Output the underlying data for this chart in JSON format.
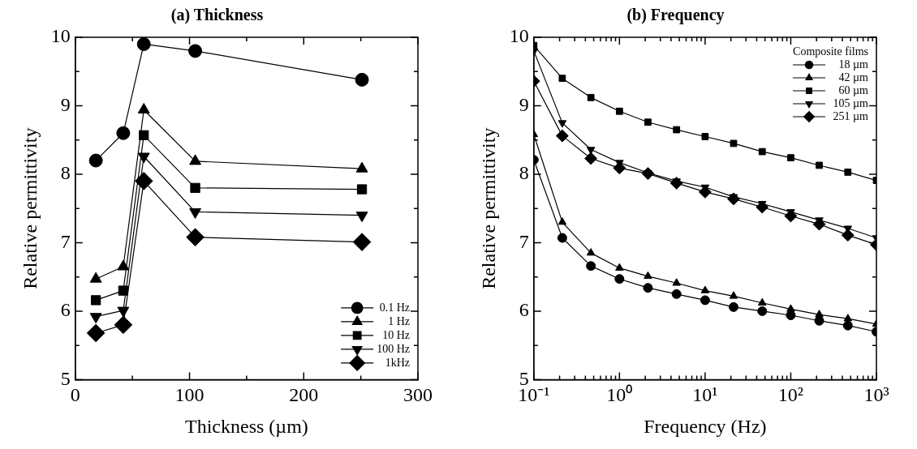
{
  "chart_data": [
    {
      "type": "line",
      "title": "(a) Thickness",
      "xlabel": "Thickness (µm)",
      "ylabel": "Relative permittivity",
      "x": [
        18,
        42,
        60,
        105,
        251
      ],
      "series": [
        {
          "name": "0.1 Hz",
          "color": "#000000",
          "marker": "circle",
          "values": [
            8.2,
            8.6,
            9.9,
            9.8,
            9.38
          ]
        },
        {
          "name": "1 Hz",
          "color": "#000000",
          "marker": "triangle",
          "values": [
            6.47,
            6.65,
            8.94,
            8.19,
            8.08
          ]
        },
        {
          "name": "10 Hz",
          "color": "#000000",
          "marker": "square",
          "values": [
            6.16,
            6.3,
            8.57,
            7.8,
            7.78
          ]
        },
        {
          "name": "100 Hz",
          "color": "#000000",
          "marker": "triangle-down",
          "values": [
            5.92,
            6.01,
            8.26,
            7.45,
            7.4
          ]
        },
        {
          "name": "1kHz",
          "color": "#000000",
          "marker": "diamond",
          "values": [
            5.68,
            5.8,
            7.9,
            7.08,
            7.01
          ]
        }
      ],
      "xlim": [
        0,
        300
      ],
      "xticks": [
        0,
        {
          "value": 50,
          "label": null
        },
        100,
        {
          "value": 150,
          "label": null
        },
        200,
        {
          "value": 250,
          "label": null
        },
        300
      ],
      "ylim": [
        5,
        10
      ],
      "yticks": [
        5,
        {
          "value": 5.5,
          "label": null
        },
        6,
        {
          "value": 6.5,
          "label": null
        },
        7,
        {
          "value": 7.5,
          "label": null
        },
        8,
        {
          "value": 8.5,
          "label": null
        },
        9,
        {
          "value": 9.5,
          "label": null
        },
        10
      ],
      "legend": "bottom right",
      "line_style": "solid"
    },
    {
      "type": "line",
      "title": "(b) Frequency",
      "xlabel": "Frequency (Hz)",
      "ylabel": "Relative permittivity",
      "legend_title": "Composite films",
      "x": [
        0.1,
        0.215,
        0.464,
        1,
        2.15,
        4.64,
        10,
        21.5,
        46.4,
        100,
        215,
        464,
        1000
      ],
      "series": [
        {
          "name": "18 µm",
          "color": "#000000",
          "marker": "circle",
          "values": [
            8.21,
            7.07,
            6.66,
            6.47,
            6.34,
            6.25,
            6.16,
            6.06,
            6.0,
            5.94,
            5.86,
            5.79,
            5.7
          ]
        },
        {
          "name": "42 µm",
          "color": "#000000",
          "marker": "triangle",
          "values": [
            8.58,
            7.3,
            6.85,
            6.63,
            6.51,
            6.41,
            6.3,
            6.22,
            6.12,
            6.03,
            5.95,
            5.89,
            5.81
          ]
        },
        {
          "name": "60 µm",
          "color": "#000000",
          "marker": "square",
          "values": [
            9.88,
            9.4,
            9.12,
            8.92,
            8.76,
            8.65,
            8.55,
            8.45,
            8.33,
            8.24,
            8.13,
            8.03,
            7.91
          ]
        },
        {
          "name": "105 µm",
          "color": "#000000",
          "marker": "triangle-down",
          "values": [
            9.8,
            8.75,
            8.36,
            8.17,
            8.02,
            7.9,
            7.81,
            7.67,
            7.57,
            7.45,
            7.33,
            7.21,
            7.07
          ]
        },
        {
          "name": "251 µm",
          "color": "#000000",
          "marker": "diamond",
          "values": [
            9.36,
            8.56,
            8.23,
            8.09,
            8.01,
            7.87,
            7.74,
            7.64,
            7.52,
            7.39,
            7.27,
            7.11,
            6.97
          ]
        }
      ],
      "log": "x",
      "xlim": [
        0.1,
        1000
      ],
      "xticks": [
        {
          "value": 0.1,
          "label": "10⁻¹"
        },
        {
          "value": 1,
          "label": "10⁰"
        },
        {
          "value": 10,
          "label": "10¹"
        },
        {
          "value": 100,
          "label": "10²"
        },
        {
          "value": 1000,
          "label": "10³"
        }
      ],
      "ylim": [
        5,
        10
      ],
      "yticks": [
        5,
        {
          "value": 5.5,
          "label": null
        },
        6,
        {
          "value": 6.5,
          "label": null
        },
        7,
        {
          "value": 7.5,
          "label": null
        },
        8,
        {
          "value": 8.5,
          "label": null
        },
        9,
        {
          "value": 9.5,
          "label": null
        },
        10
      ],
      "legend": "top right",
      "line_style": "solid"
    }
  ]
}
